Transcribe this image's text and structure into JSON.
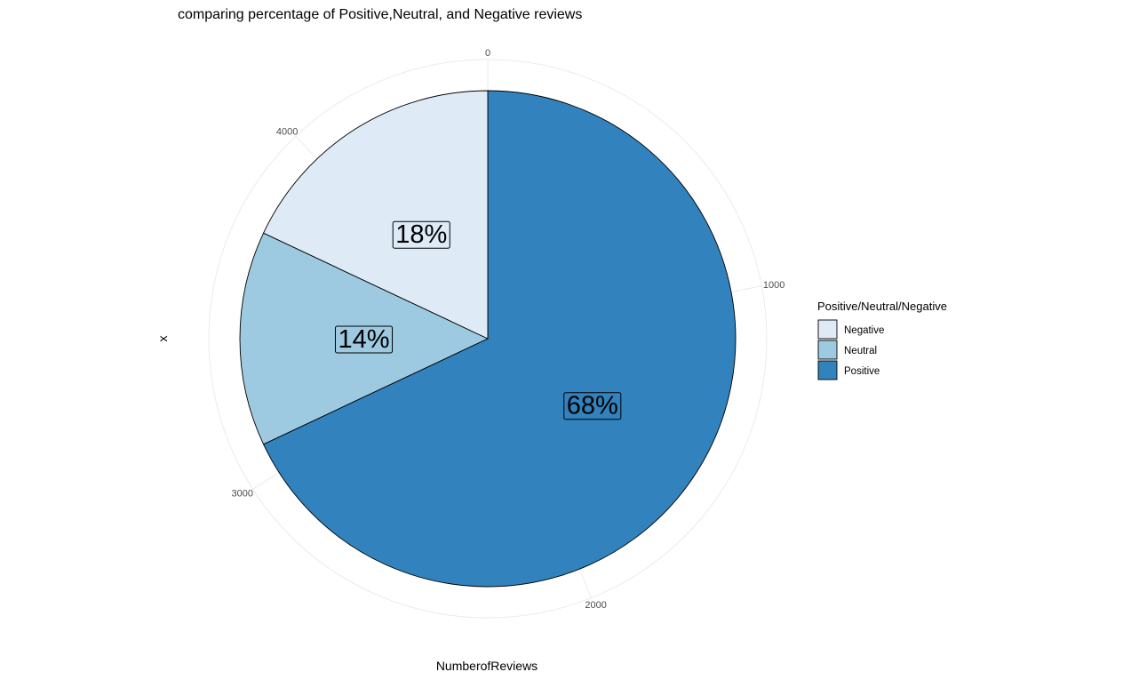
{
  "chart_data": {
    "type": "pie",
    "title": "comparing percentage of Positive,Neutral, and Negative reviews",
    "xlabel": "NumberofReviews",
    "ylabel": "x",
    "radial_axis": {
      "ticks": [
        0,
        1000,
        2000,
        3000,
        4000
      ],
      "max": 4550
    },
    "legend": {
      "title": "Positive/Neutral/Negative",
      "position": "right"
    },
    "slices": [
      {
        "category": "Positive",
        "value": 3094,
        "label": "68%",
        "color": "#3182bd"
      },
      {
        "category": "Neutral",
        "value": 637,
        "label": "14%",
        "color": "#9ecae1"
      },
      {
        "category": "Negative",
        "value": 819,
        "label": "18%",
        "color": "#deebf7"
      }
    ],
    "legend_order": [
      "Negative",
      "Neutral",
      "Positive"
    ],
    "grid": true
  }
}
